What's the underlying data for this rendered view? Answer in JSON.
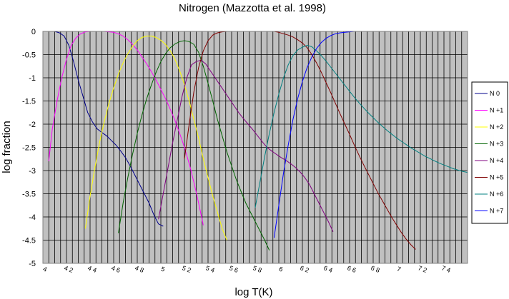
{
  "chart_data": {
    "type": "line",
    "title": "Nitrogen (Mazzotta et al. 1998)",
    "xlabel": "log T(K)",
    "ylabel": "log fraction",
    "xlim": [
      4.0,
      7.6
    ],
    "ylim": [
      -5.0,
      0.0
    ],
    "xticks": [
      4.0,
      4.2,
      4.4,
      4.6,
      4.8,
      5.0,
      5.2,
      5.4,
      5.6,
      5.8,
      6.0,
      6.2,
      6.4,
      6.6,
      6.8,
      7.0,
      7.2,
      7.4
    ],
    "xtick_labels": [
      "4",
      "4 2",
      "4 4",
      "4 6",
      "4 8",
      "5",
      "5 2",
      "5 4",
      "5 6",
      "5 8",
      "6",
      "6 2",
      "6 4",
      "6 6",
      "6 8",
      "7",
      "7 2",
      "7 4"
    ],
    "yticks": [
      0,
      -0.5,
      -1,
      -1.5,
      -2,
      -2.5,
      -3,
      -3.5,
      -4,
      -4.5,
      -5
    ],
    "ytick_labels": [
      "0",
      "-0.5",
      "-1",
      "-1.5",
      "-2",
      "-2.5",
      "-3",
      "-3.5",
      "-4",
      "-4.5",
      "-5"
    ],
    "grid": true,
    "legend_position": "right",
    "plot_background": "#c0c0c0",
    "series": [
      {
        "name": "N 0",
        "color": "#00008b",
        "x": [
          4.06,
          4.1,
          4.14,
          4.18,
          4.22,
          4.26,
          4.3,
          4.34,
          4.38,
          4.42,
          4.46,
          4.5,
          4.54,
          4.58,
          4.62,
          4.66,
          4.7,
          4.74,
          4.78,
          4.82,
          4.86,
          4.9,
          4.94,
          4.98,
          5.02
        ],
        "y": [
          0.0,
          0.0,
          -0.03,
          -0.1,
          -0.3,
          -0.65,
          -1.05,
          -1.4,
          -1.75,
          -1.95,
          -2.1,
          -2.18,
          -2.25,
          -2.35,
          -2.45,
          -2.58,
          -2.72,
          -2.9,
          -3.1,
          -3.3,
          -3.5,
          -3.7,
          -3.95,
          -4.15,
          -4.2
        ]
      },
      {
        "name": "N +1",
        "color": "#ff00ff",
        "x": [
          4.05,
          4.08,
          4.12,
          4.16,
          4.2,
          4.24,
          4.28,
          4.32,
          4.36,
          4.4,
          4.44,
          4.48,
          4.52,
          4.56,
          4.6,
          4.64,
          4.68,
          4.72,
          4.76,
          4.8,
          4.84,
          4.88,
          4.92,
          4.96,
          5.0,
          5.04,
          5.08,
          5.12,
          5.16,
          5.2,
          5.24,
          5.28,
          5.32,
          5.36
        ],
        "y": [
          -2.8,
          -2.1,
          -1.5,
          -1.0,
          -0.6,
          -0.3,
          -0.14,
          -0.05,
          -0.01,
          0.0,
          0.0,
          0.0,
          0.0,
          -0.01,
          -0.02,
          -0.05,
          -0.1,
          -0.18,
          -0.28,
          -0.4,
          -0.55,
          -0.7,
          -0.87,
          -1.05,
          -1.25,
          -1.45,
          -1.68,
          -1.92,
          -2.2,
          -2.5,
          -2.85,
          -3.25,
          -3.7,
          -4.18
        ]
      },
      {
        "name": "N +2",
        "color": "#ffff00",
        "x": [
          4.36,
          4.4,
          4.44,
          4.48,
          4.52,
          4.56,
          4.6,
          4.64,
          4.68,
          4.72,
          4.76,
          4.8,
          4.84,
          4.88,
          4.92,
          4.96,
          5.0,
          5.04,
          5.08,
          5.12,
          5.16,
          5.2,
          5.24,
          5.28,
          5.32,
          5.36,
          5.4,
          5.44,
          5.48,
          5.52,
          5.56
        ],
        "y": [
          -4.25,
          -3.55,
          -2.95,
          -2.4,
          -1.95,
          -1.55,
          -1.22,
          -0.92,
          -0.68,
          -0.48,
          -0.32,
          -0.2,
          -0.13,
          -0.1,
          -0.1,
          -0.13,
          -0.19,
          -0.28,
          -0.42,
          -0.6,
          -0.85,
          -1.15,
          -1.5,
          -1.9,
          -2.3,
          -2.75,
          -3.15,
          -3.55,
          -3.9,
          -4.25,
          -4.5
        ]
      },
      {
        "name": "N +3",
        "color": "#006400",
        "x": [
          4.64,
          4.68,
          4.72,
          4.76,
          4.8,
          4.84,
          4.88,
          4.92,
          4.96,
          5.0,
          5.04,
          5.08,
          5.12,
          5.16,
          5.2,
          5.24,
          5.28,
          5.32,
          5.36,
          5.4,
          5.44,
          5.48,
          5.52,
          5.56,
          5.6,
          5.64,
          5.68,
          5.72,
          5.76,
          5.8,
          5.84,
          5.88,
          5.92
        ],
        "y": [
          -4.35,
          -3.7,
          -3.15,
          -2.65,
          -2.2,
          -1.8,
          -1.45,
          -1.15,
          -0.88,
          -0.65,
          -0.48,
          -0.35,
          -0.27,
          -0.22,
          -0.2,
          -0.22,
          -0.28,
          -0.45,
          -0.75,
          -1.12,
          -1.5,
          -1.9,
          -2.25,
          -2.6,
          -2.9,
          -3.2,
          -3.45,
          -3.7,
          -3.9,
          -4.1,
          -4.3,
          -4.5,
          -4.72
        ]
      },
      {
        "name": "N +4",
        "color": "#800080",
        "x": [
          4.98,
          5.02,
          5.06,
          5.1,
          5.14,
          5.18,
          5.22,
          5.26,
          5.3,
          5.34,
          5.38,
          5.42,
          5.46,
          5.5,
          5.54,
          5.58,
          5.62,
          5.66,
          5.7,
          5.74,
          5.78,
          5.82,
          5.86,
          5.9,
          5.94,
          5.98,
          6.02,
          6.06,
          6.1,
          6.14,
          6.18,
          6.22,
          6.26,
          6.3,
          6.34,
          6.38,
          6.42,
          6.46
        ],
        "y": [
          -4.05,
          -3.5,
          -2.95,
          -2.4,
          -1.9,
          -1.4,
          -1.0,
          -0.72,
          -0.65,
          -0.62,
          -0.7,
          -0.85,
          -1.0,
          -1.15,
          -1.3,
          -1.45,
          -1.6,
          -1.75,
          -1.88,
          -2.0,
          -2.12,
          -2.25,
          -2.38,
          -2.5,
          -2.58,
          -2.65,
          -2.72,
          -2.78,
          -2.85,
          -2.93,
          -3.03,
          -3.15,
          -3.3,
          -3.5,
          -3.7,
          -3.9,
          -4.1,
          -4.32
        ]
      },
      {
        "name": "N +5",
        "color": "#800000",
        "x": [
          5.2,
          5.24,
          5.28,
          5.32,
          5.36,
          5.4,
          5.44,
          5.48,
          5.52,
          5.56,
          5.6,
          5.64,
          5.68,
          5.72,
          5.76,
          5.8,
          5.84,
          5.88,
          5.92,
          5.96,
          6.0,
          6.04,
          6.08,
          6.12,
          6.16,
          6.2,
          6.24,
          6.28,
          6.32,
          6.36,
          6.4,
          6.44,
          6.48,
          6.52,
          6.56,
          6.6,
          6.64,
          6.68,
          6.72,
          6.76,
          6.8,
          6.84,
          6.88,
          6.92,
          6.96,
          7.0,
          7.04,
          7.08,
          7.12,
          7.16
        ],
        "y": [
          -2.75,
          -2.0,
          -1.3,
          -0.78,
          -0.42,
          -0.2,
          -0.08,
          -0.03,
          -0.01,
          0.0,
          0.0,
          0.0,
          0.0,
          0.0,
          0.0,
          0.0,
          0.0,
          0.0,
          0.0,
          0.0,
          -0.02,
          -0.05,
          -0.08,
          -0.12,
          -0.18,
          -0.25,
          -0.35,
          -0.5,
          -0.68,
          -0.88,
          -1.1,
          -1.32,
          -1.55,
          -1.78,
          -2.0,
          -2.22,
          -2.45,
          -2.67,
          -2.88,
          -3.08,
          -3.28,
          -3.48,
          -3.66,
          -3.84,
          -4.02,
          -4.18,
          -4.34,
          -4.48,
          -4.6,
          -4.7
        ]
      },
      {
        "name": "N +6",
        "color": "#008080",
        "x": [
          5.8,
          5.84,
          5.88,
          5.92,
          5.96,
          6.0,
          6.04,
          6.08,
          6.12,
          6.16,
          6.2,
          6.24,
          6.28,
          6.32,
          6.36,
          6.4,
          6.44,
          6.48,
          6.52,
          6.56,
          6.6,
          6.64,
          6.68,
          6.72,
          6.76,
          6.8,
          6.84,
          6.88,
          6.92,
          6.96,
          7.0,
          7.04,
          7.08,
          7.12,
          7.16,
          7.2,
          7.24,
          7.28,
          7.32,
          7.36,
          7.4,
          7.44,
          7.48,
          7.52,
          7.56,
          7.6
        ],
        "y": [
          -3.8,
          -3.25,
          -2.7,
          -2.2,
          -1.75,
          -1.35,
          -1.0,
          -0.72,
          -0.52,
          -0.4,
          -0.34,
          -0.3,
          -0.33,
          -0.42,
          -0.52,
          -0.64,
          -0.77,
          -0.9,
          -1.03,
          -1.16,
          -1.29,
          -1.42,
          -1.54,
          -1.65,
          -1.76,
          -1.86,
          -1.96,
          -2.05,
          -2.14,
          -2.22,
          -2.3,
          -2.37,
          -2.44,
          -2.51,
          -2.57,
          -2.63,
          -2.69,
          -2.74,
          -2.79,
          -2.84,
          -2.88,
          -2.92,
          -2.96,
          -2.99,
          -3.02,
          -3.04
        ]
      },
      {
        "name": "N +7",
        "color": "#0000ff",
        "x": [
          5.96,
          6.0,
          6.04,
          6.08,
          6.12,
          6.16,
          6.2,
          6.24,
          6.28,
          6.32,
          6.36,
          6.4,
          6.44,
          6.48,
          6.52,
          6.56,
          6.6,
          6.64,
          6.68,
          6.72,
          6.76,
          6.8,
          6.9,
          7.0,
          7.2,
          7.4,
          7.6
        ],
        "y": [
          -4.45,
          -3.75,
          -3.05,
          -2.45,
          -1.9,
          -1.45,
          -1.08,
          -0.78,
          -0.55,
          -0.37,
          -0.24,
          -0.15,
          -0.09,
          -0.05,
          -0.03,
          -0.02,
          -0.01,
          0.0,
          0.0,
          0.0,
          0.0,
          0.0,
          0.0,
          0.0,
          0.0,
          0.0,
          0.0
        ]
      }
    ]
  }
}
